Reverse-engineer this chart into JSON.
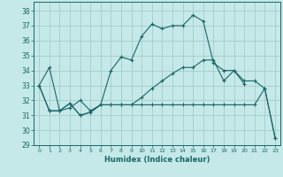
{
  "xlabel": "Humidex (Indice chaleur)",
  "bg_color": "#c5e8e8",
  "grid_color": "#9ec8c8",
  "line_color": "#1a6666",
  "xlim": [
    -0.5,
    23.5
  ],
  "ylim": [
    29,
    38.6
  ],
  "yticks": [
    29,
    30,
    31,
    32,
    33,
    34,
    35,
    36,
    37,
    38
  ],
  "xticks": [
    0,
    1,
    2,
    3,
    4,
    5,
    6,
    7,
    8,
    9,
    10,
    11,
    12,
    13,
    14,
    15,
    16,
    17,
    18,
    19,
    20,
    21,
    22,
    23
  ],
  "line1_x": [
    0,
    1,
    2,
    3,
    4,
    5,
    6,
    7,
    8,
    9,
    10,
    11,
    12,
    13,
    14,
    15,
    16,
    17,
    18,
    19,
    20
  ],
  "line1_y": [
    33.0,
    34.2,
    31.3,
    31.5,
    32.0,
    31.3,
    31.7,
    34.0,
    34.9,
    34.7,
    36.3,
    37.1,
    36.8,
    37.0,
    37.0,
    37.7,
    37.3,
    34.5,
    34.0,
    34.0,
    33.1
  ],
  "line2_x": [
    0,
    1,
    2,
    3,
    4,
    5,
    6,
    7,
    8,
    9,
    10,
    11,
    12,
    13,
    14,
    15,
    16,
    17,
    18,
    19,
    20,
    21,
    22,
    23
  ],
  "line2_y": [
    33.0,
    31.3,
    31.3,
    31.8,
    31.0,
    31.2,
    31.7,
    31.7,
    31.7,
    31.7,
    31.7,
    31.7,
    31.7,
    31.7,
    31.7,
    31.7,
    31.7,
    31.7,
    31.7,
    31.7,
    31.7,
    31.7,
    32.8,
    29.5
  ],
  "line3_x": [
    0,
    1,
    2,
    3,
    4,
    5,
    6,
    7,
    8,
    9,
    10,
    11,
    12,
    13,
    14,
    15,
    16,
    17,
    18,
    19,
    20,
    21,
    22,
    23
  ],
  "line3_y": [
    33.0,
    31.3,
    31.3,
    31.8,
    31.0,
    31.2,
    31.7,
    31.7,
    31.7,
    31.7,
    32.2,
    32.8,
    33.3,
    33.8,
    34.2,
    34.2,
    34.7,
    34.7,
    33.3,
    34.0,
    33.3,
    33.3,
    32.8,
    29.5
  ]
}
